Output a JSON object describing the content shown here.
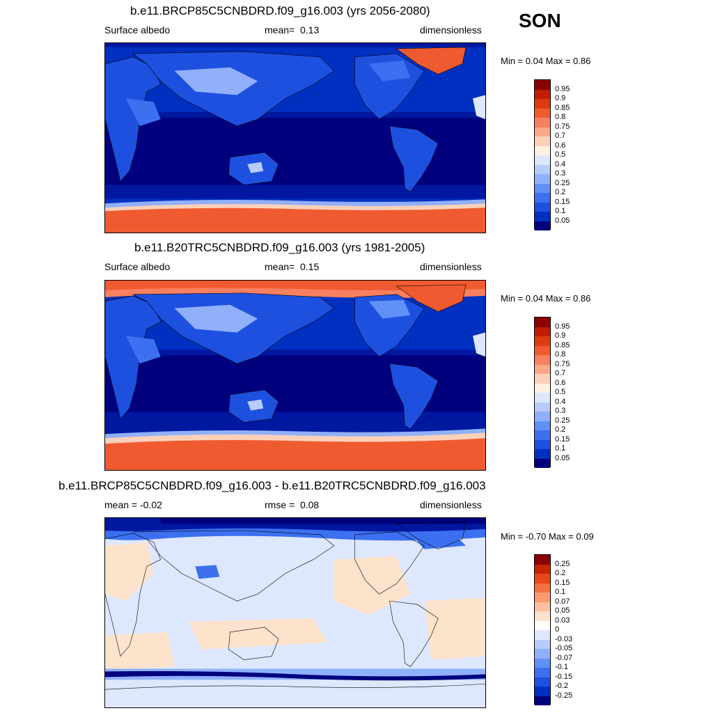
{
  "season": "SON",
  "colorbar_colors_main": [
    "#00007f",
    "#0018a0",
    "#0030c0",
    "#1e50e0",
    "#3c70f0",
    "#6090f8",
    "#90b0fb",
    "#b8ccfc",
    "#dde8fe",
    "#fff0e0",
    "#fdd0b8",
    "#fba888",
    "#f98060",
    "#f05a30",
    "#e03a10",
    "#c01e00",
    "#8b0000"
  ],
  "colorbar_colors_diff": [
    "#00007f",
    "#0018a0",
    "#0030c0",
    "#1e50e0",
    "#3c70f0",
    "#6090f8",
    "#90b0fb",
    "#b8ccfc",
    "#dde8fe",
    "#ffffff",
    "#fde2cc",
    "#fcc0a0",
    "#fa9a70",
    "#f57040",
    "#e84818",
    "#c82400",
    "#8b0000"
  ],
  "panels": [
    {
      "title": "b.e11.BRCP85C5CNBDRD.f09_g16.003 (yrs 2056-2080)",
      "left_label": "Surface albedo",
      "mean_label": "mean=",
      "mean_value": "0.13",
      "units": "dimensionless",
      "minmax": "Min =   0.04 Max =   0.86",
      "colorbar_labels": [
        "0.95",
        "0.9",
        "0.85",
        "0.8",
        "0.75",
        "0.7",
        "0.6",
        "0.5",
        "0.4",
        "0.3",
        "0.25",
        "0.2",
        "0.15",
        "0.1",
        "0.05"
      ]
    },
    {
      "title": "b.e11.B20TRC5CNBDRD.f09_g16.003 (yrs 1981-2005)",
      "left_label": "Surface albedo",
      "mean_label": "mean=",
      "mean_value": "0.15",
      "units": "dimensionless",
      "minmax": "Min =   0.04 Max =   0.86",
      "colorbar_labels": [
        "0.95",
        "0.9",
        "0.85",
        "0.8",
        "0.75",
        "0.7",
        "0.6",
        "0.5",
        "0.4",
        "0.3",
        "0.25",
        "0.2",
        "0.15",
        "0.1",
        "0.05"
      ]
    },
    {
      "title": "b.e11.BRCP85C5CNBDRD.f09_g16.003 - b.e11.B20TRC5CNBDRD.f09_g16.003",
      "left_label": "mean =  -0.02",
      "mean_label": "rmse =",
      "mean_value": "0.08",
      "units": "dimensionless",
      "minmax": "Min =  -0.70 Max =   0.09",
      "colorbar_labels": [
        "0.25",
        "0.2",
        "0.15",
        "0.1",
        "0.07",
        "0.05",
        "0.03",
        "0",
        "-0.03",
        "-0.05",
        "-0.07",
        "-0.1",
        "-0.15",
        "-0.2",
        "-0.25"
      ]
    }
  ]
}
